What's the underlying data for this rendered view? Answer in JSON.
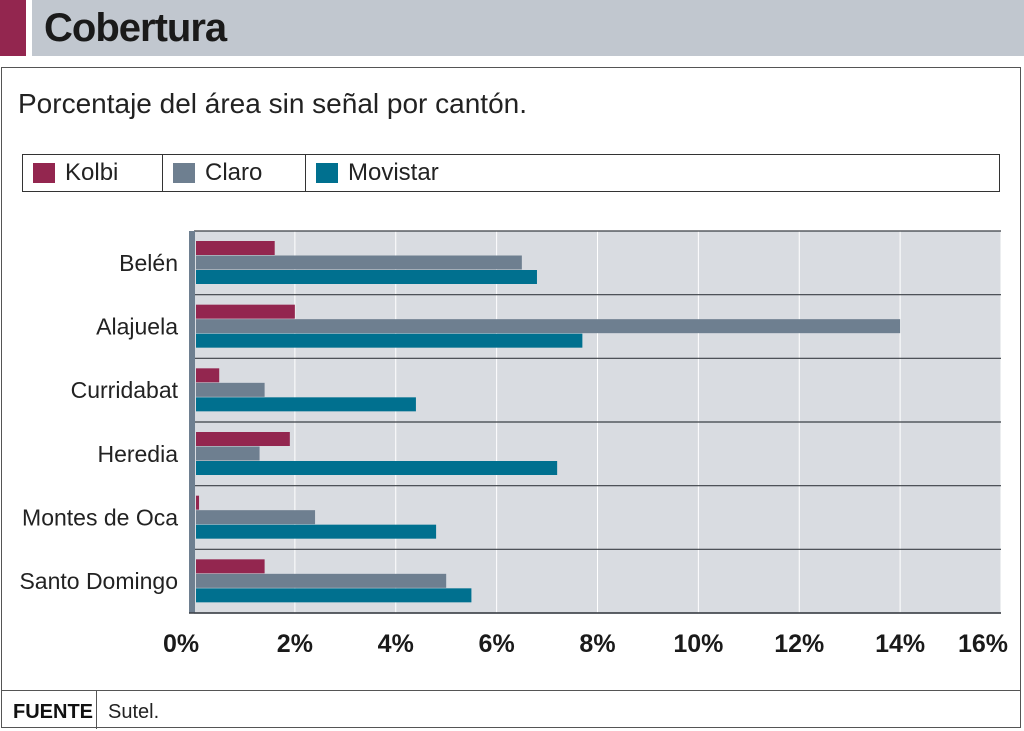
{
  "header": {
    "title": "Cobertura"
  },
  "subtitle": "Porcentaje del área sin señal por cantón.",
  "colors": {
    "kolbi": "#93264f",
    "claro": "#6e7f90",
    "movistar": "#00708f",
    "plot_bg": "#d9dce1",
    "accent": "#93264f"
  },
  "chart_data": {
    "type": "bar",
    "orientation": "horizontal",
    "title": "Porcentaje del área sin señal por cantón.",
    "xlabel": "",
    "ylabel": "",
    "categories": [
      "Belén",
      "Alajuela",
      "Curridabat",
      "Heredia",
      "Montes de Oca",
      "Santo Domingo"
    ],
    "series": [
      {
        "name": "Kolbi",
        "values": [
          1.6,
          2.0,
          0.5,
          1.9,
          0.1,
          1.4
        ]
      },
      {
        "name": "Claro",
        "values": [
          6.5,
          14.0,
          1.4,
          1.3,
          2.4,
          5.0
        ]
      },
      {
        "name": "Movistar",
        "values": [
          6.8,
          7.7,
          4.4,
          7.2,
          4.8,
          5.5
        ]
      }
    ],
    "xlim": [
      0,
      16
    ],
    "ticks": [
      {
        "value": 0,
        "label": "0%"
      },
      {
        "value": 2,
        "label": "2%"
      },
      {
        "value": 4,
        "label": "4%"
      },
      {
        "value": 6,
        "label": "6%"
      },
      {
        "value": 8,
        "label": "8%"
      },
      {
        "value": 10,
        "label": "10%"
      },
      {
        "value": 12,
        "label": "12%"
      },
      {
        "value": 14,
        "label": "14%"
      },
      {
        "value": 16,
        "label": "16%"
      }
    ],
    "legend": [
      "Kolbi",
      "Claro",
      "Movistar"
    ],
    "legend_position": "top"
  },
  "footer": {
    "label": "FUENTE",
    "source": "Sutel."
  }
}
